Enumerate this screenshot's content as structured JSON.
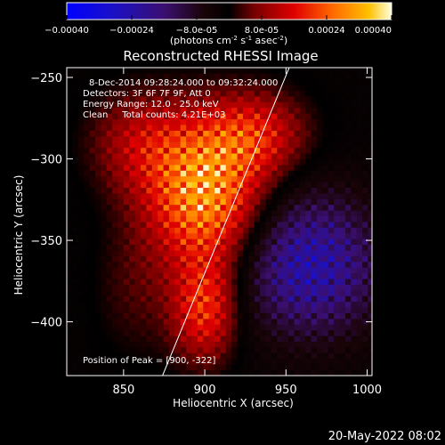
{
  "chart_data": {
    "type": "heatmap",
    "title": "Reconstructed RHESSI Image",
    "xlabel": "Heliocentric X (arcsec)",
    "ylabel": "Heliocentric Y (arcsec)",
    "xlim": [
      815,
      1003
    ],
    "ylim": [
      -433,
      -244
    ],
    "xticks": [
      850,
      900,
      950,
      1000
    ],
    "yticks": [
      -250,
      -300,
      -350,
      -400
    ],
    "colorbar": {
      "min": -0.0004,
      "max": 0.0004,
      "ticks": [
        "-0.00040",
        "-0.00024",
        "-8.0e-05",
        "8.0e-05",
        "0.00024",
        "0.00040"
      ],
      "label_main": "(photons cm",
      "label_exp1": "-2",
      "label_mid1": " s",
      "label_exp2": "-1",
      "label_mid2": " asec",
      "label_exp3": "-2",
      "label_end": ")"
    },
    "annotations": {
      "time_range": "8-Dec-2014 09:28:24.000 to 09:32:24.000",
      "detectors": "Detectors: 3F 6F 7F 9F, Att 0",
      "energy": "Energy Range: 12.0 - 25.0 keV",
      "clean": "Clean     Total counts: 4.21E+03",
      "peak": "Position of Peak = [900, -322]"
    },
    "peak": {
      "x": 900,
      "y": -322
    },
    "limb_line": [
      [
        874,
        -433
      ],
      [
        952,
        -244
      ]
    ],
    "sources": [
      {
        "x": 900,
        "y": -322,
        "sx": 24,
        "sy": 30,
        "amp": 0.0004
      },
      {
        "x": 900,
        "y": -392,
        "sx": 14,
        "sy": 22,
        "amp": 0.00026
      },
      {
        "x": 930,
        "y": -285,
        "sx": 22,
        "sy": 18,
        "amp": 0.00022
      },
      {
        "x": 862,
        "y": -290,
        "sx": 22,
        "sy": 22,
        "amp": 0.00016
      },
      {
        "x": 858,
        "y": -380,
        "sx": 18,
        "sy": 30,
        "amp": 6e-05
      },
      {
        "x": 965,
        "y": -365,
        "sx": 30,
        "sy": 30,
        "amp": -0.00028
      }
    ]
  },
  "footer": {
    "date": "20-May-2022 08:02"
  }
}
